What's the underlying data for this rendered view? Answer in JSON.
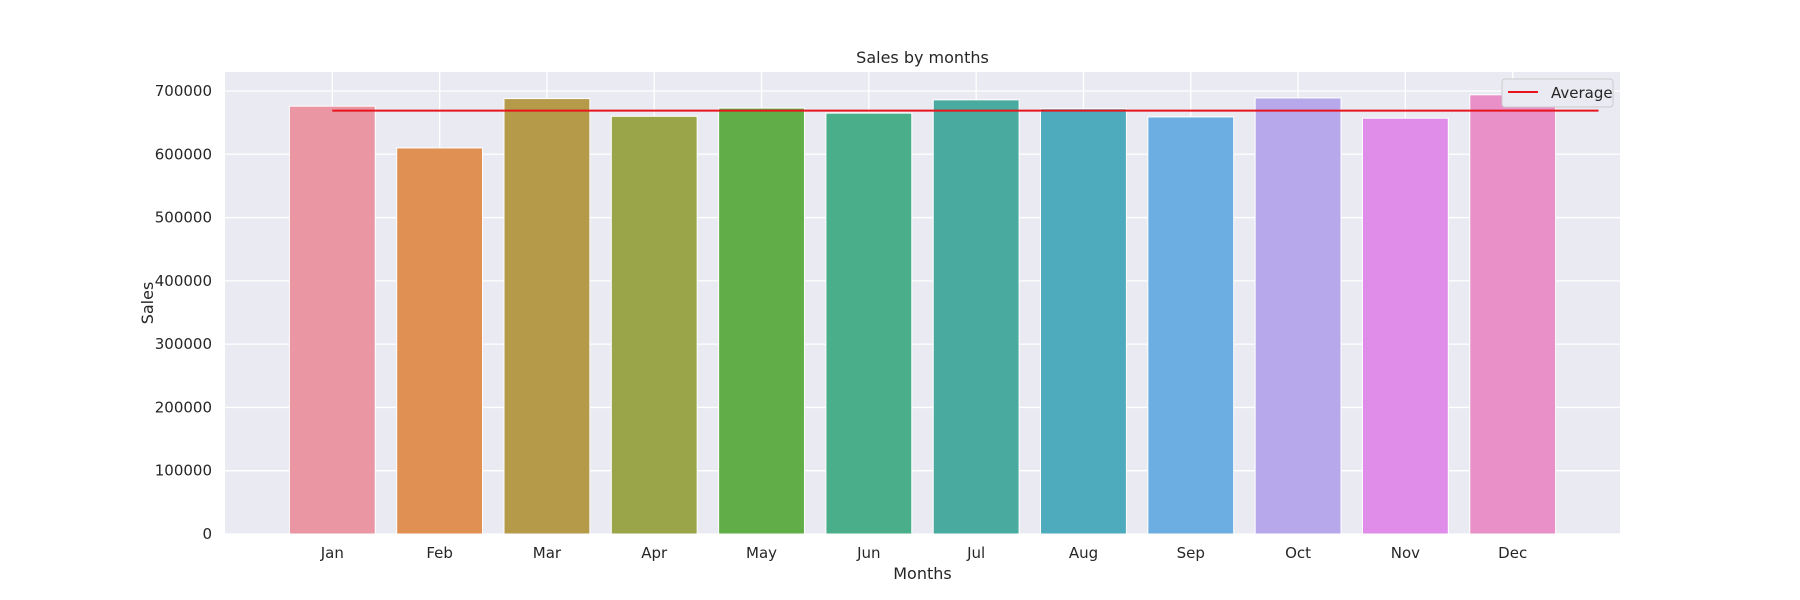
{
  "chart_data": {
    "type": "bar",
    "title": "Sales by months",
    "xlabel": "Months",
    "ylabel": "Sales",
    "categories": [
      "Jan",
      "Feb",
      "Mar",
      "Apr",
      "May",
      "Jun",
      "Jul",
      "Aug",
      "Sep",
      "Oct",
      "Nov",
      "Dec"
    ],
    "values": [
      676000,
      610000,
      688000,
      660000,
      673000,
      665000,
      686000,
      672000,
      659000,
      689000,
      657000,
      694000
    ],
    "bar_colors": [
      "#ea96a3",
      "#e09053",
      "#b59a49",
      "#9aa448",
      "#61ae48",
      "#4aae8a",
      "#49ab9f",
      "#4eabbd",
      "#6daee2",
      "#b7a8ec",
      "#df8de9",
      "#e890c7"
    ],
    "ylim": [
      0,
      730000
    ],
    "yticks": [
      0,
      100000,
      200000,
      300000,
      400000,
      500000,
      600000,
      700000
    ],
    "ytick_labels": [
      "0",
      "100000",
      "200000",
      "300000",
      "400000",
      "500000",
      "600000",
      "700000"
    ],
    "average": {
      "name": "Average",
      "value": 669000,
      "color": "#e8141c"
    },
    "grid": true,
    "legend": {
      "position": "top-right",
      "entries": [
        "Average"
      ]
    },
    "background": "#eaeaf2"
  }
}
